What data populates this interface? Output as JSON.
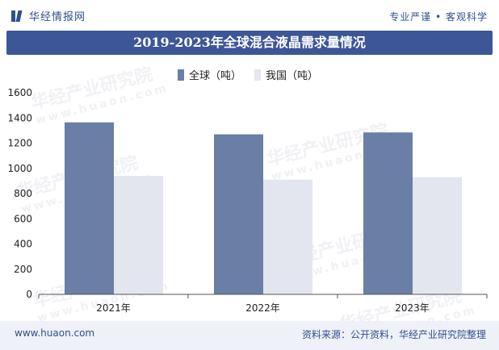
{
  "header": {
    "logo_text": "华经情报网",
    "tagline": "专业严谨 • 客观科学"
  },
  "watermark": {
    "text": "华经产业研究院",
    "url": "www.huaon.com"
  },
  "footer": {
    "url": "www.huaon.com",
    "source": "资料来源：公开资料，华经产业研究院整理"
  },
  "colors": {
    "title_band": "#3d5698",
    "global_series": "#6a7ea6",
    "china_series": "#e3e6ef"
  },
  "chart_data": {
    "type": "bar",
    "title": "2019-2023年全球混合液晶需求量情况",
    "categories": [
      "2021年",
      "2022年",
      "2023年"
    ],
    "series": [
      {
        "name": "全球（吨）",
        "values": [
          1365,
          1270,
          1285
        ]
      },
      {
        "name": "我国（吨）",
        "values": [
          940,
          910,
          930
        ]
      }
    ],
    "xlabel": "",
    "ylabel": "",
    "ylim": [
      0,
      1600
    ],
    "yticks": [
      0,
      200,
      400,
      600,
      800,
      1000,
      1200,
      1400,
      1600
    ],
    "grid": false,
    "legend_position": "top-center"
  }
}
